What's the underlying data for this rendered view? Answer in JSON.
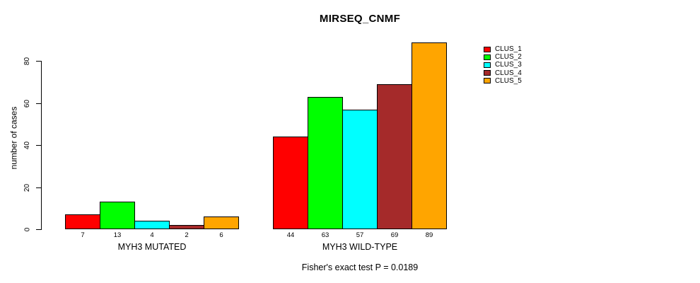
{
  "title": "MIRSEQ_CNMF",
  "caption": "Fisher's exact test P = 0.0189",
  "chart_data": {
    "type": "bar",
    "title": "MIRSEQ_CNMF",
    "xlabel": "",
    "ylabel": "number of cases",
    "ylim": [
      0,
      89
    ],
    "yticks": [
      0,
      20,
      40,
      60,
      80
    ],
    "grid": false,
    "legend_position": "top-right-outside",
    "categories": [
      "MYH3 MUTATED",
      "MYH3 WILD-TYPE"
    ],
    "groups": [
      {
        "label": "MYH3 MUTATED",
        "values": [
          7,
          13,
          4,
          2,
          6
        ]
      },
      {
        "label": "MYH3 WILD-TYPE",
        "values": [
          44,
          63,
          57,
          69,
          89
        ]
      }
    ],
    "series": [
      {
        "name": "CLUS_1",
        "color": "#FF0000",
        "values": [
          7,
          44
        ]
      },
      {
        "name": "CLUS_2",
        "color": "#00FF00",
        "values": [
          13,
          63
        ]
      },
      {
        "name": "CLUS_3",
        "color": "#00FFFF",
        "values": [
          4,
          57
        ]
      },
      {
        "name": "CLUS_4",
        "color": "#A52A2A",
        "values": [
          2,
          69
        ]
      },
      {
        "name": "CLUS_5",
        "color": "#FFA500",
        "values": [
          6,
          89
        ]
      }
    ],
    "bar_value_labels": [
      [
        "7",
        "13",
        "4",
        "2",
        "6"
      ],
      [
        "44",
        "63",
        "57",
        "69",
        "89"
      ]
    ],
    "annotation": "Fisher's exact test P = 0.0189"
  },
  "legend": {
    "items": [
      {
        "label": "CLUS_1",
        "color": "#FF0000"
      },
      {
        "label": "CLUS_2",
        "color": "#00FF00"
      },
      {
        "label": "CLUS_3",
        "color": "#00FFFF"
      },
      {
        "label": "CLUS_4",
        "color": "#A52A2A"
      },
      {
        "label": "CLUS_5",
        "color": "#FFA500"
      }
    ]
  },
  "colors": {
    "background": "#FFFFFF",
    "axis": "#000000",
    "text": "#000000"
  }
}
